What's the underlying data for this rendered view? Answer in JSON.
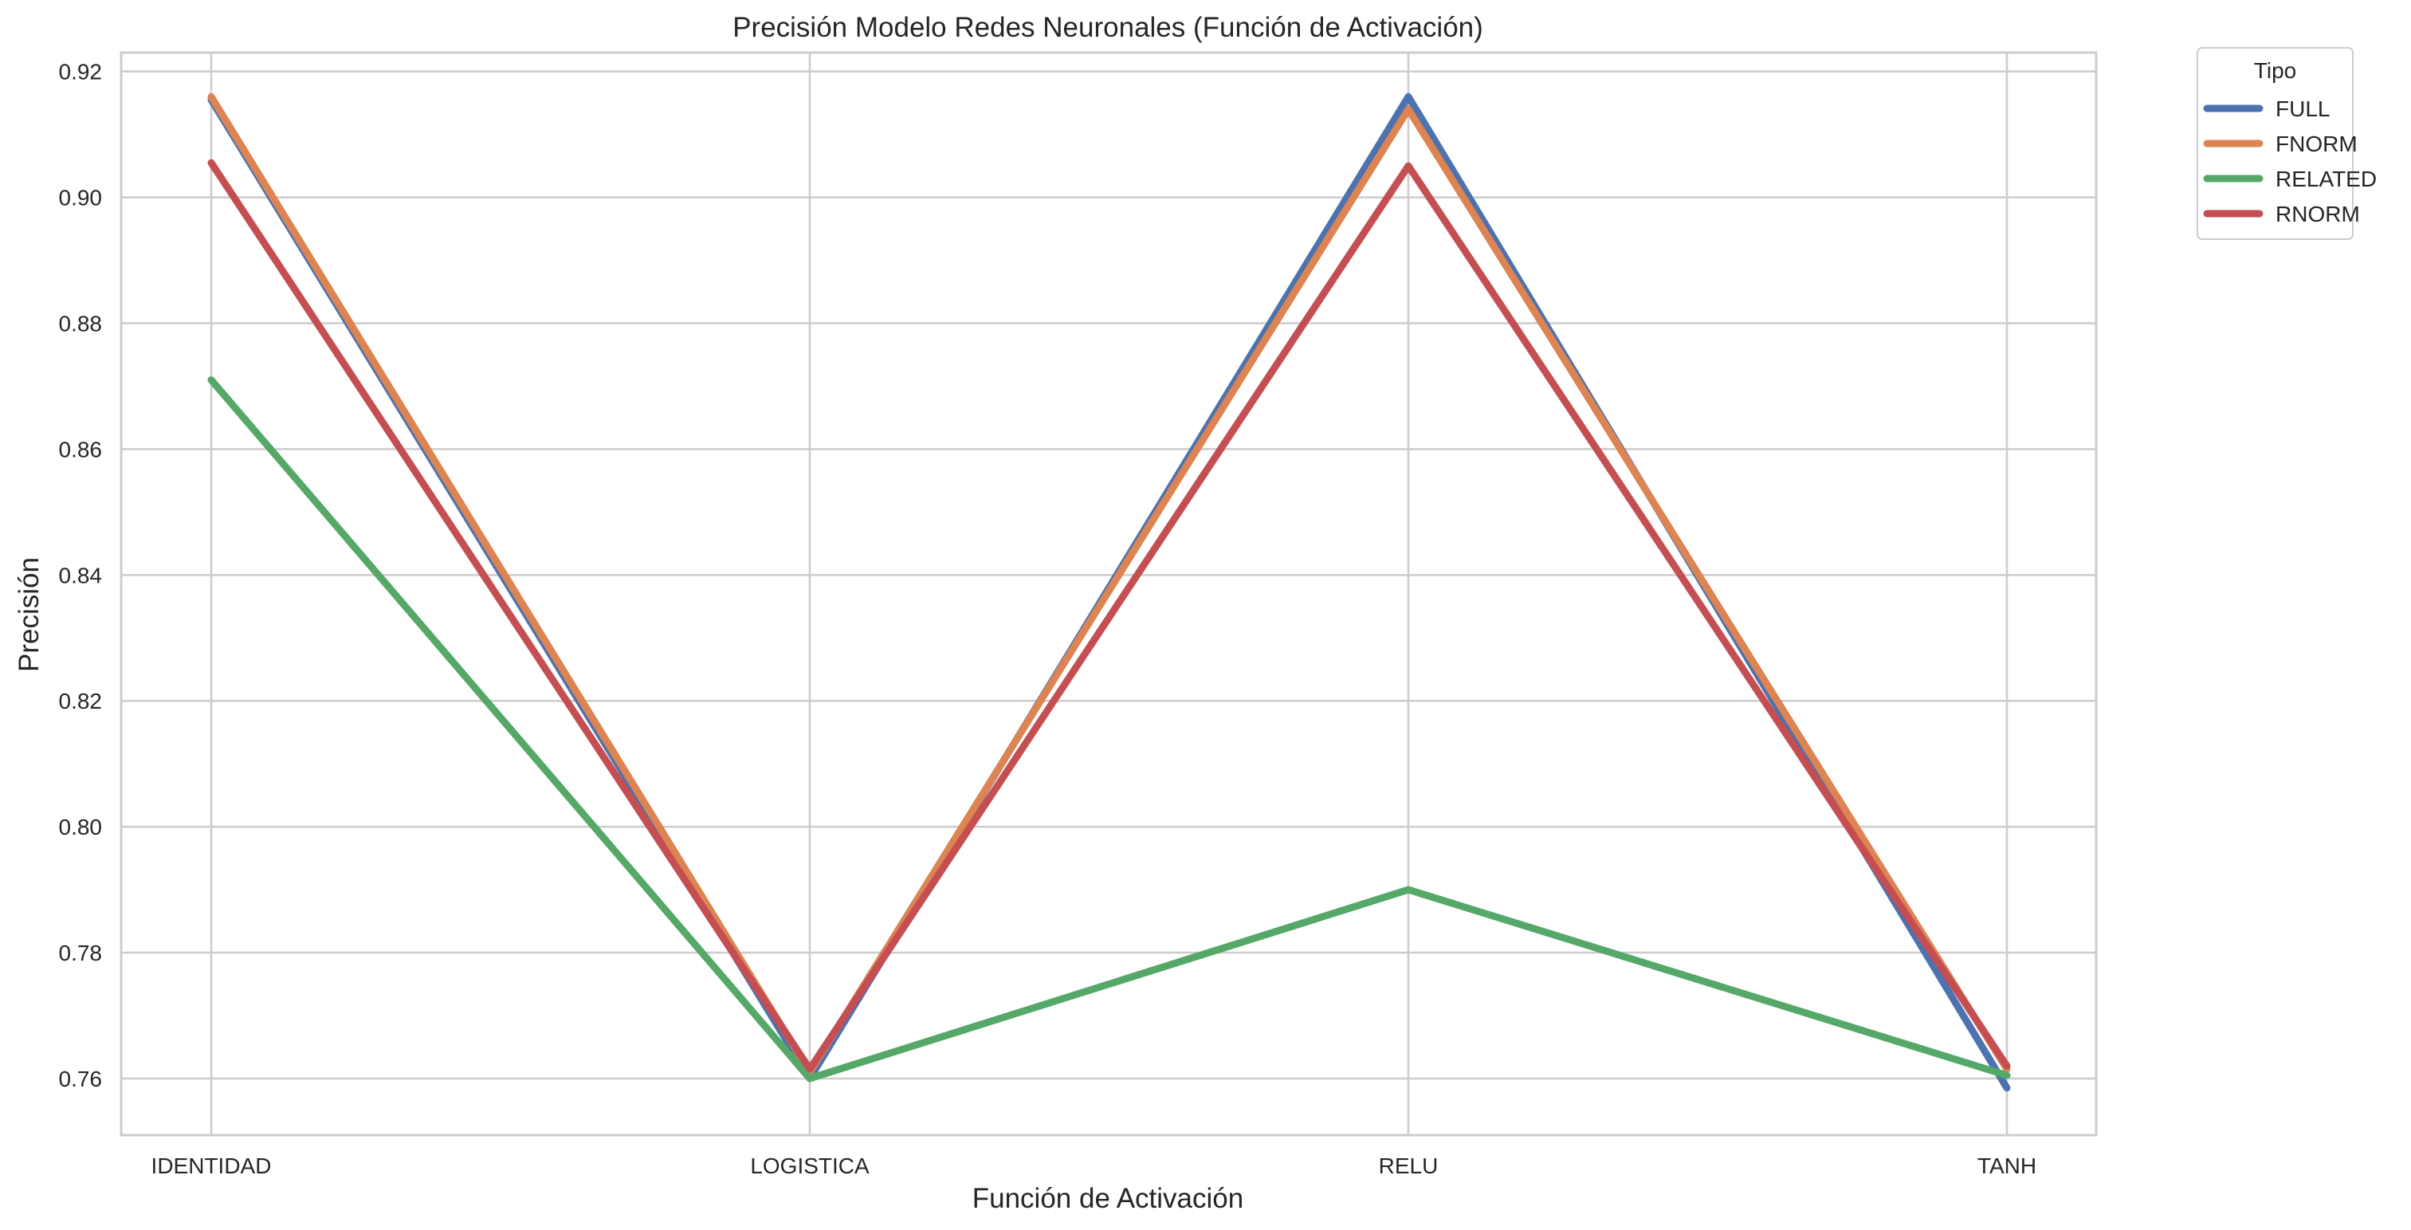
{
  "chart_data": {
    "type": "line",
    "title": "Precisión Modelo Redes Neuronales (Función de Activación)",
    "xlabel": "Función de Activación",
    "ylabel": "Precisión",
    "categories": [
      "IDENTIDAD",
      "LOGISTICA",
      "RELU",
      "TANH"
    ],
    "ylim": [
      0.751,
      0.923
    ],
    "yticks": [
      0.76,
      0.78,
      0.8,
      0.82,
      0.84,
      0.86,
      0.88,
      0.9,
      0.92
    ],
    "ytick_labels": [
      "0.76",
      "0.78",
      "0.80",
      "0.82",
      "0.84",
      "0.86",
      "0.88",
      "0.90",
      "0.92"
    ],
    "grid": true,
    "legend": {
      "title": "Tipo",
      "placement": "outside-top-right"
    },
    "series": [
      {
        "name": "FULL",
        "color": "#4c72b0",
        "values": [
          0.9155,
          0.76,
          0.916,
          0.7585
        ]
      },
      {
        "name": "FNORM",
        "color": "#dd8452",
        "values": [
          0.916,
          0.761,
          0.914,
          0.7615
        ]
      },
      {
        "name": "RELATED",
        "color": "#55a868",
        "values": [
          0.871,
          0.76,
          0.79,
          0.7605
        ]
      },
      {
        "name": "RNORM",
        "color": "#c44e52",
        "values": [
          0.9055,
          0.7615,
          0.905,
          0.762
        ]
      }
    ]
  }
}
